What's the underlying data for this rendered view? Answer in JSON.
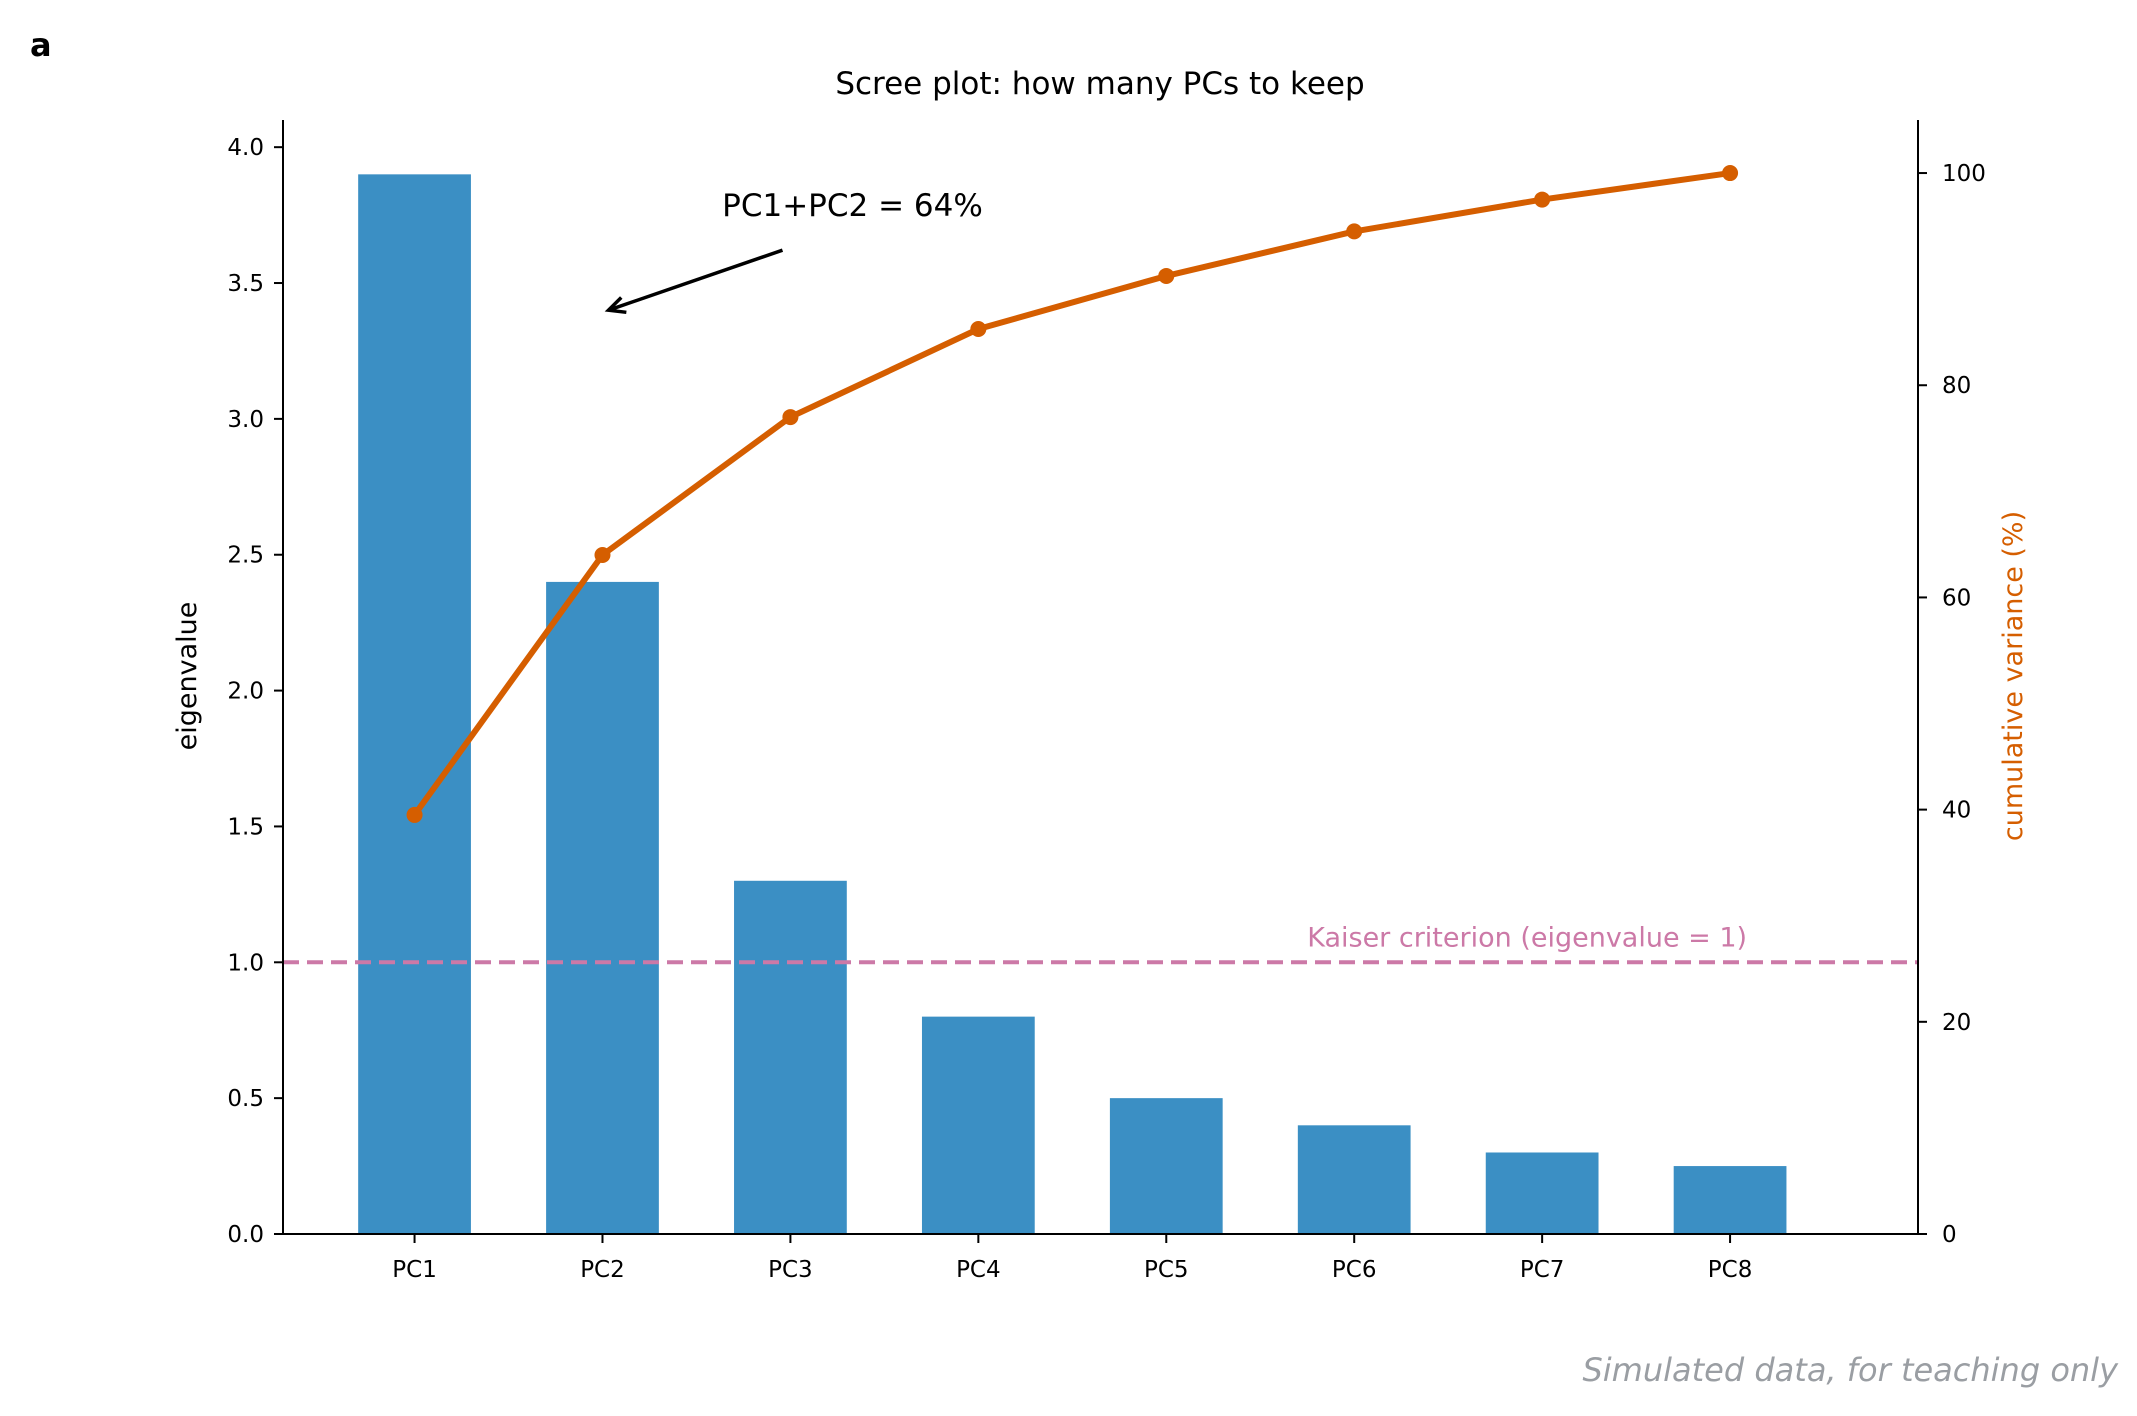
{
  "panel_label": "a",
  "footnote": "Simulated data, for teaching only",
  "chart_data": {
    "type": "bar",
    "title": "Scree plot: how many PCs to keep",
    "categories": [
      "PC1",
      "PC2",
      "PC3",
      "PC4",
      "PC5",
      "PC6",
      "PC7",
      "PC8"
    ],
    "ylabel": "eigenvalue",
    "ylim": [
      0,
      4.1
    ],
    "yticks": [
      "0.0",
      "0.5",
      "1.0",
      "1.5",
      "2.0",
      "2.5",
      "3.0",
      "3.5",
      "4.0"
    ],
    "y2label": "cumulative variance (%)",
    "y2lim": [
      0,
      105
    ],
    "y2ticks": [
      "0",
      "20",
      "40",
      "60",
      "80",
      "100"
    ],
    "grid": false,
    "series": [
      {
        "kind": "bar",
        "axis": "left",
        "color": "#3b8fc4",
        "values": [
          3.9,
          2.4,
          1.3,
          0.8,
          0.5,
          0.4,
          0.3,
          0.25
        ]
      },
      {
        "kind": "line",
        "axis": "right",
        "color": "#d55e00",
        "values": [
          39.5,
          64,
          77,
          85.3,
          90.3,
          94.5,
          97.5,
          100
        ]
      }
    ],
    "reference_line": {
      "y": 1.0,
      "axis": "left",
      "color": "#cc79a7",
      "label": "Kaiser criterion (eigenvalue = 1)"
    },
    "annotation": {
      "text": "PC1+PC2 = 64%",
      "arrow_to_category": "PC2",
      "arrow_to_value": 3.4
    }
  }
}
